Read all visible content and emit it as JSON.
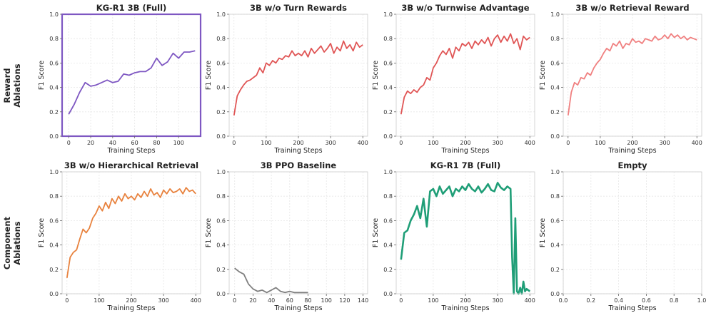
{
  "row_labels": [
    {
      "line1": "Reward",
      "line2": "Ablations"
    },
    {
      "line1": "Component",
      "line2": "Ablations"
    }
  ],
  "chart_data": [
    {
      "type": "line",
      "title": "KG-R1 3B (Full)",
      "color": "#7e57c2",
      "highlight": true,
      "highlight_color": "#7e57c2",
      "xlabel": "Training Steps",
      "ylabel": "F1 Score",
      "xlim": [
        -6,
        120
      ],
      "xticks": [
        0,
        20,
        40,
        60,
        80,
        100
      ],
      "ylim": [
        0,
        1
      ],
      "yticks": [
        0.0,
        0.2,
        0.4,
        0.6,
        0.8,
        1.0
      ],
      "x": [
        0,
        5,
        10,
        15,
        20,
        25,
        30,
        35,
        40,
        45,
        50,
        55,
        60,
        65,
        70,
        75,
        80,
        85,
        90,
        95,
        100,
        105,
        110,
        115
      ],
      "y": [
        0.18,
        0.26,
        0.36,
        0.44,
        0.41,
        0.42,
        0.44,
        0.46,
        0.44,
        0.45,
        0.51,
        0.5,
        0.52,
        0.53,
        0.53,
        0.56,
        0.64,
        0.58,
        0.61,
        0.68,
        0.64,
        0.69,
        0.69,
        0.7
      ]
    },
    {
      "type": "line",
      "title": "3B w/o Turn Rewards",
      "color": "#e05555",
      "xlabel": "Training Steps",
      "ylabel": "F1 Score",
      "xlim": [
        -15,
        415
      ],
      "xticks": [
        0,
        100,
        200,
        300,
        400
      ],
      "ylim": [
        0,
        1
      ],
      "yticks": [
        0.0,
        0.2,
        0.4,
        0.6,
        0.8,
        1.0
      ],
      "x": [
        0,
        10,
        20,
        30,
        40,
        50,
        60,
        70,
        80,
        90,
        100,
        110,
        120,
        130,
        140,
        150,
        160,
        170,
        180,
        190,
        200,
        210,
        220,
        230,
        240,
        250,
        260,
        270,
        280,
        290,
        300,
        310,
        320,
        330,
        340,
        350,
        360,
        370,
        380,
        390,
        400
      ],
      "y": [
        0.17,
        0.33,
        0.38,
        0.42,
        0.45,
        0.46,
        0.48,
        0.5,
        0.56,
        0.52,
        0.6,
        0.58,
        0.62,
        0.6,
        0.64,
        0.63,
        0.66,
        0.65,
        0.7,
        0.66,
        0.68,
        0.66,
        0.7,
        0.65,
        0.72,
        0.68,
        0.71,
        0.74,
        0.69,
        0.72,
        0.76,
        0.68,
        0.73,
        0.7,
        0.78,
        0.72,
        0.75,
        0.7,
        0.77,
        0.73,
        0.75
      ]
    },
    {
      "type": "line",
      "title": "3B w/o Turnwise Advantage",
      "color": "#e05555",
      "xlabel": "Training Steps",
      "ylabel": "F1 Score",
      "xlim": [
        -15,
        415
      ],
      "xticks": [
        0,
        100,
        200,
        300,
        400
      ],
      "ylim": [
        0,
        1
      ],
      "yticks": [
        0.0,
        0.2,
        0.4,
        0.6,
        0.8,
        1.0
      ],
      "x": [
        0,
        10,
        20,
        30,
        40,
        50,
        60,
        70,
        80,
        90,
        100,
        110,
        120,
        130,
        140,
        150,
        160,
        170,
        180,
        190,
        200,
        210,
        220,
        230,
        240,
        250,
        260,
        270,
        280,
        290,
        300,
        310,
        320,
        330,
        340,
        350,
        360,
        370,
        380,
        390,
        400
      ],
      "y": [
        0.18,
        0.32,
        0.37,
        0.35,
        0.38,
        0.36,
        0.4,
        0.42,
        0.48,
        0.46,
        0.56,
        0.6,
        0.66,
        0.7,
        0.67,
        0.72,
        0.64,
        0.73,
        0.7,
        0.76,
        0.74,
        0.77,
        0.72,
        0.78,
        0.75,
        0.79,
        0.76,
        0.81,
        0.74,
        0.8,
        0.83,
        0.77,
        0.82,
        0.78,
        0.84,
        0.76,
        0.8,
        0.71,
        0.82,
        0.79,
        0.81
      ]
    },
    {
      "type": "line",
      "title": "3B w/o Retrieval Reward",
      "color": "#f08080",
      "xlabel": "Training Steps",
      "ylabel": "F1 Score",
      "xlim": [
        -15,
        415
      ],
      "xticks": [
        0,
        100,
        200,
        300,
        400
      ],
      "ylim": [
        0,
        1
      ],
      "yticks": [
        0.0,
        0.2,
        0.4,
        0.6,
        0.8,
        1.0
      ],
      "x": [
        0,
        10,
        20,
        30,
        40,
        50,
        60,
        70,
        80,
        90,
        100,
        110,
        120,
        130,
        140,
        150,
        160,
        170,
        180,
        190,
        200,
        210,
        220,
        230,
        240,
        250,
        260,
        270,
        280,
        290,
        300,
        310,
        320,
        330,
        340,
        350,
        360,
        370,
        380,
        390,
        400
      ],
      "y": [
        0.17,
        0.36,
        0.44,
        0.42,
        0.48,
        0.47,
        0.52,
        0.5,
        0.56,
        0.6,
        0.63,
        0.68,
        0.72,
        0.7,
        0.76,
        0.74,
        0.78,
        0.72,
        0.76,
        0.75,
        0.8,
        0.77,
        0.78,
        0.76,
        0.8,
        0.79,
        0.78,
        0.82,
        0.79,
        0.8,
        0.83,
        0.8,
        0.84,
        0.81,
        0.83,
        0.8,
        0.82,
        0.79,
        0.81,
        0.8,
        0.79
      ]
    },
    {
      "type": "line",
      "title": "3B w/o Hierarchical Retrieval",
      "color": "#e8823e",
      "xlabel": "Training Steps",
      "ylabel": "F1 Score",
      "xlim": [
        -15,
        415
      ],
      "xticks": [
        0,
        100,
        200,
        300,
        400
      ],
      "ylim": [
        0,
        1
      ],
      "yticks": [
        0.0,
        0.2,
        0.4,
        0.6,
        0.8,
        1.0
      ],
      "x": [
        0,
        10,
        20,
        30,
        40,
        50,
        60,
        70,
        80,
        90,
        100,
        110,
        120,
        130,
        140,
        150,
        160,
        170,
        180,
        190,
        200,
        210,
        220,
        230,
        240,
        250,
        260,
        270,
        280,
        290,
        300,
        310,
        320,
        330,
        340,
        350,
        360,
        370,
        380,
        390,
        400
      ],
      "y": [
        0.13,
        0.3,
        0.34,
        0.36,
        0.45,
        0.53,
        0.5,
        0.54,
        0.62,
        0.66,
        0.72,
        0.68,
        0.75,
        0.7,
        0.78,
        0.74,
        0.8,
        0.76,
        0.82,
        0.78,
        0.8,
        0.77,
        0.82,
        0.79,
        0.84,
        0.8,
        0.86,
        0.81,
        0.83,
        0.79,
        0.85,
        0.82,
        0.86,
        0.83,
        0.84,
        0.86,
        0.82,
        0.87,
        0.84,
        0.85,
        0.82
      ]
    },
    {
      "type": "line",
      "title": "3B PPO Baseline",
      "color": "#7f7f7f",
      "xlabel": "Training Steps",
      "ylabel": "F1 Score",
      "xlim": [
        -6,
        145
      ],
      "xticks": [
        0,
        20,
        40,
        60,
        80,
        100,
        120,
        140
      ],
      "ylim": [
        0,
        1
      ],
      "yticks": [
        0.0,
        0.2,
        0.4,
        0.6,
        0.8,
        1.0
      ],
      "x": [
        0,
        5,
        10,
        15,
        20,
        25,
        30,
        35,
        40,
        45,
        50,
        55,
        60,
        65,
        70,
        75,
        80
      ],
      "y": [
        0.21,
        0.18,
        0.16,
        0.08,
        0.04,
        0.02,
        0.03,
        0.01,
        0.03,
        0.05,
        0.02,
        0.01,
        0.02,
        0.01,
        0.01,
        0.01,
        0.01
      ]
    },
    {
      "type": "line",
      "title": "KG-R1 7B (Full)",
      "color": "#1f9e77",
      "line_width": 2.6,
      "xlabel": "Training Steps",
      "ylabel": "F1 Score",
      "xlim": [
        -15,
        415
      ],
      "xticks": [
        0,
        100,
        200,
        300,
        400
      ],
      "ylim": [
        0,
        1
      ],
      "yticks": [
        0.0,
        0.2,
        0.4,
        0.6,
        0.8,
        1.0
      ],
      "x": [
        0,
        10,
        20,
        30,
        40,
        50,
        60,
        70,
        80,
        90,
        100,
        110,
        120,
        130,
        140,
        150,
        160,
        170,
        180,
        190,
        200,
        210,
        220,
        230,
        240,
        250,
        260,
        270,
        280,
        290,
        300,
        310,
        320,
        330,
        340,
        345,
        350,
        355,
        360,
        365,
        370,
        375,
        380,
        385,
        390,
        395,
        400
      ],
      "y": [
        0.28,
        0.5,
        0.52,
        0.6,
        0.65,
        0.72,
        0.62,
        0.78,
        0.55,
        0.84,
        0.86,
        0.8,
        0.88,
        0.82,
        0.85,
        0.88,
        0.8,
        0.86,
        0.84,
        0.88,
        0.85,
        0.9,
        0.86,
        0.84,
        0.88,
        0.83,
        0.86,
        0.9,
        0.85,
        0.84,
        0.91,
        0.87,
        0.85,
        0.88,
        0.86,
        0.3,
        0.0,
        0.62,
        0.02,
        0.0,
        0.05,
        0.0,
        0.1,
        0.02,
        0.04,
        0.03,
        0.02
      ]
    },
    {
      "type": "line",
      "title": "Empty",
      "color": "#999999",
      "empty": true,
      "xlabel": "Training Steps",
      "ylabel": "F1 Score",
      "xlim": [
        0,
        1
      ],
      "xticks": [
        0.0,
        0.2,
        0.4,
        0.6,
        0.8,
        1.0
      ],
      "ylim": [
        0,
        1
      ],
      "yticks": [
        0.0,
        0.2,
        0.4,
        0.6,
        0.8,
        1.0
      ],
      "x": [],
      "y": []
    }
  ]
}
